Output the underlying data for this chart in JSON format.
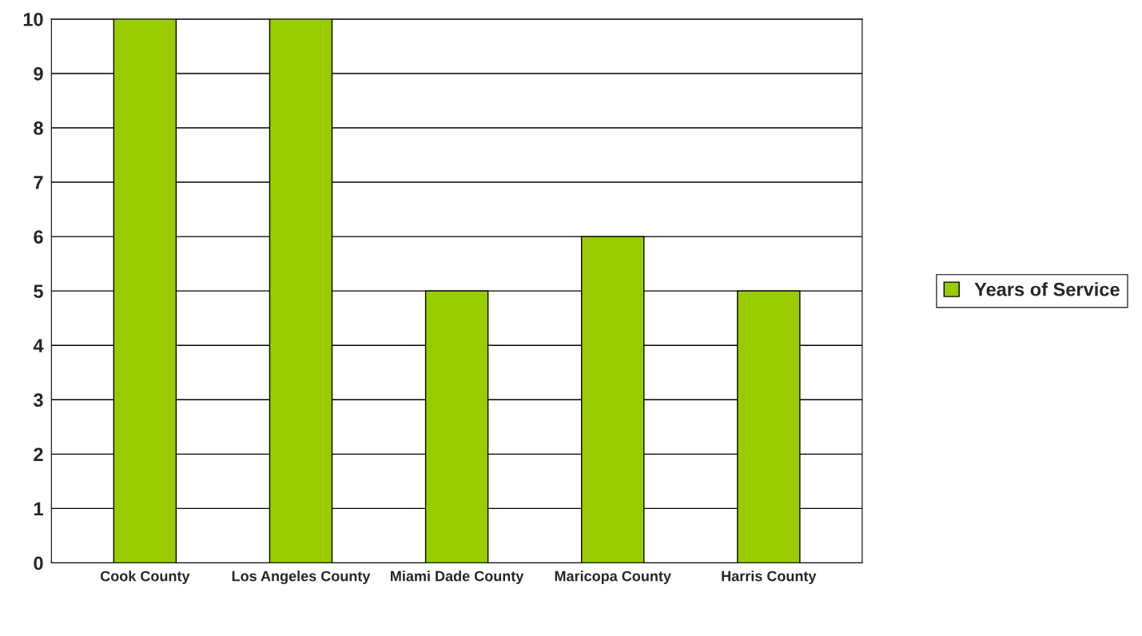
{
  "chart_data": {
    "type": "bar",
    "categories": [
      "Cook County",
      "Los Angeles County",
      "Miami Dade County",
      "Maricopa County",
      "Harris County"
    ],
    "series": [
      {
        "name": "Years of Service",
        "color": "#99cc00",
        "values": [
          10,
          10,
          5,
          6,
          5
        ]
      }
    ],
    "ylim": [
      0,
      10
    ],
    "yticks": [
      0,
      1,
      2,
      3,
      4,
      5,
      6,
      7,
      8,
      9,
      10
    ],
    "grid": "y",
    "legend": "right"
  }
}
